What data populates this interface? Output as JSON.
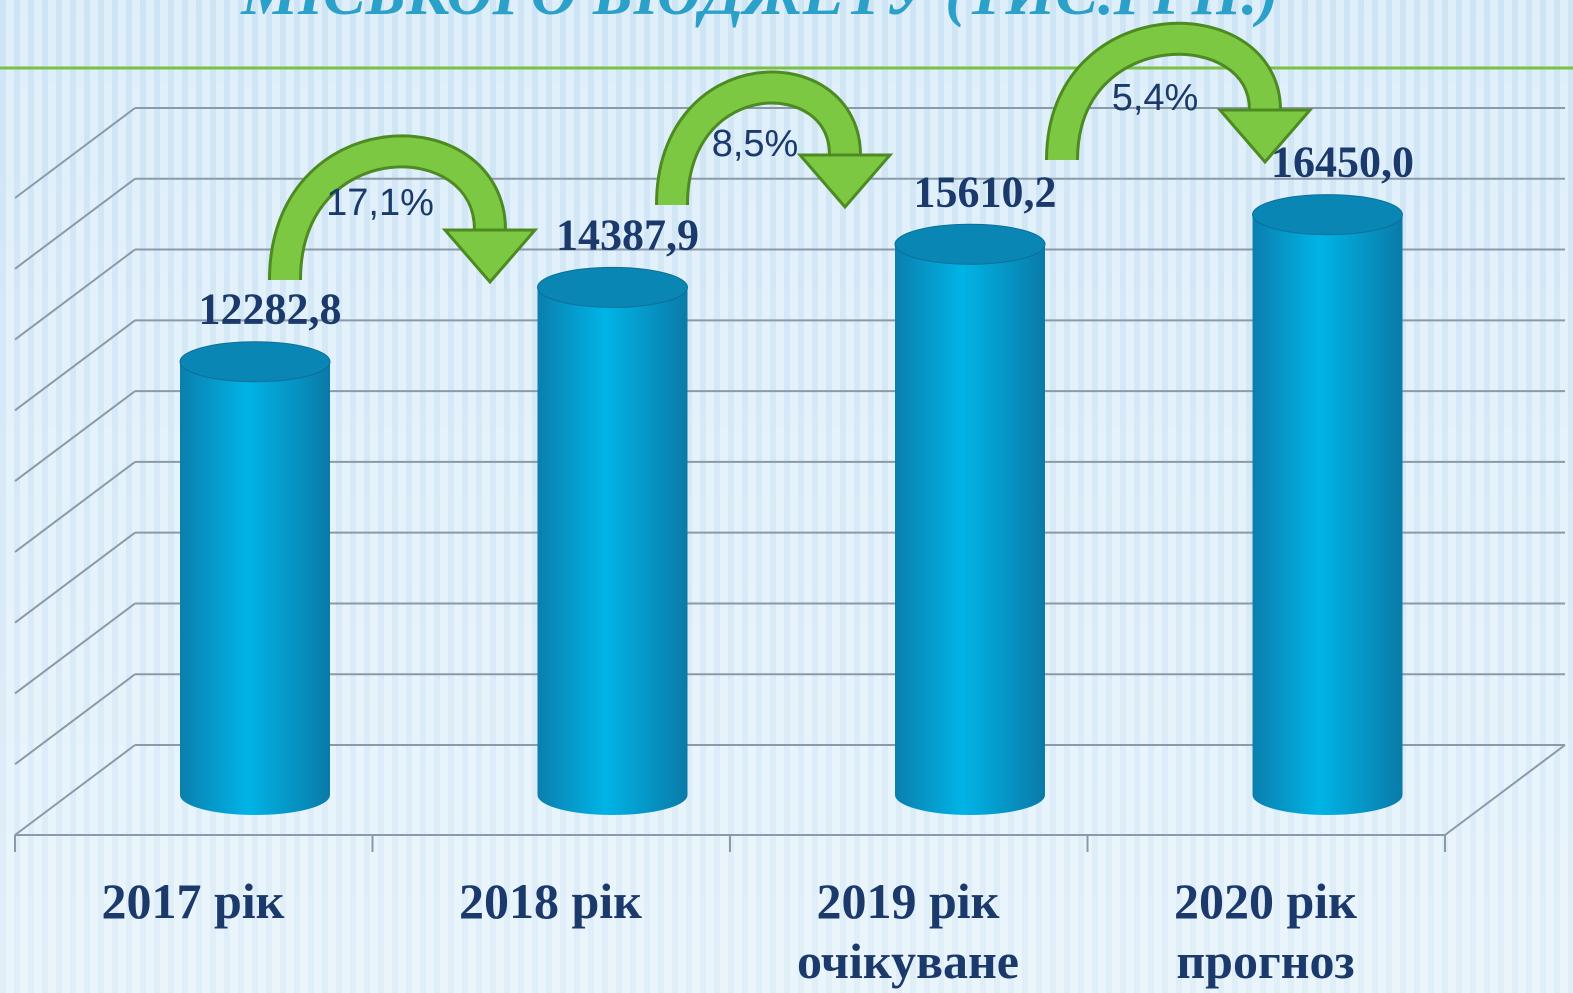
{
  "chart_data": {
    "type": "bar",
    "title": "МІСЬКОГО БЮДЖЕТУ  (ТИС.ГРН.)",
    "categories": [
      "2017 рік",
      "2018 рік",
      "2019 рік\nочікуване",
      "2020 рік\nпрогноз"
    ],
    "values": [
      12282.8,
      14387.9,
      15610.2,
      16450.0
    ],
    "value_labels": [
      "12282,8",
      "14387,9",
      "15610,2",
      "16450,0"
    ],
    "growth_labels": [
      "17,1%",
      "8,5%",
      "5,4%"
    ],
    "color": "#00a8d8",
    "ylim": [
      0,
      18000
    ],
    "yticks": [
      0,
      2000,
      4000,
      6000,
      8000,
      10000,
      12000,
      14000,
      16000,
      18000
    ],
    "grid": true
  }
}
